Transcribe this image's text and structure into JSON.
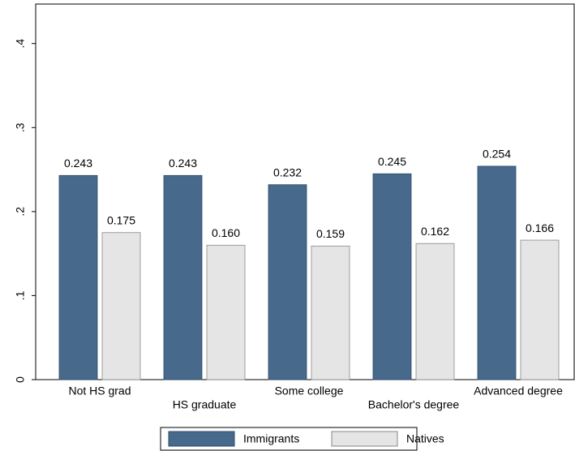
{
  "chart_data": {
    "type": "bar",
    "categories": [
      "Not HS grad",
      "HS graduate",
      "Some college",
      "Bachelor's degree",
      "Advanced degree"
    ],
    "series": [
      {
        "name": "Immigrants",
        "color": "#46698c",
        "values": [
          0.243,
          0.243,
          0.232,
          0.245,
          0.254
        ],
        "value_labels": [
          "0.243",
          "0.243",
          "0.232",
          "0.245",
          "0.254"
        ]
      },
      {
        "name": "Natives",
        "color": "#e5e5e5",
        "values": [
          0.175,
          0.16,
          0.159,
          0.162,
          0.166
        ],
        "value_labels": [
          "0.175",
          "0.160",
          "0.159",
          "0.162",
          "0.166"
        ]
      }
    ],
    "ylim": [
      0,
      0.447
    ],
    "yticks": [
      0,
      {
        "value": 0.1,
        "label": ".1"
      },
      {
        "value": 0.2,
        "label": ".2"
      },
      {
        "value": 0.3,
        "label": ".3"
      },
      {
        "value": 0.4,
        "label": ".4"
      }
    ],
    "legend": "bottom"
  }
}
